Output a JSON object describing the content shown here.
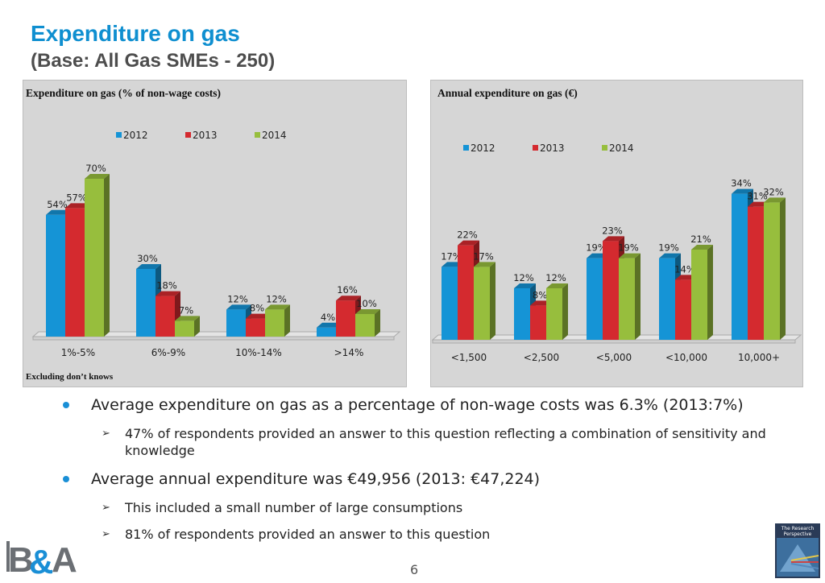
{
  "header": {
    "title": "Expenditure on gas",
    "subtitle": "(Base: All Gas SMEs - 250)"
  },
  "colors": {
    "2012": "#1594d6",
    "2013": "#d42a2f",
    "2014": "#97be3d",
    "panel_bg": "#d6d6d6",
    "title": "#0f8fd0"
  },
  "footnote": "Excluding don’t knows",
  "chart_data": [
    {
      "type": "bar",
      "title": "Expenditure on gas (% of non-wage costs)",
      "categories": [
        "1%-5%",
        "6%-9%",
        "10%-14%",
        ">14%"
      ],
      "series": [
        {
          "name": "2012",
          "values": [
            54,
            30,
            12,
            4
          ]
        },
        {
          "name": "2013",
          "values": [
            57,
            18,
            8,
            16
          ]
        },
        {
          "name": "2014",
          "values": [
            70,
            7,
            12,
            10
          ]
        }
      ],
      "value_suffix": "%",
      "ylim": [
        0,
        75
      ],
      "legend": "top",
      "grid": false
    },
    {
      "type": "bar",
      "title": "Annual expenditure on gas (€)",
      "categories": [
        "<1,500",
        "<2,500",
        "<5,000",
        "<10,000",
        "10,000+"
      ],
      "series": [
        {
          "name": "2012",
          "values": [
            17,
            12,
            19,
            19,
            34
          ]
        },
        {
          "name": "2013",
          "values": [
            22,
            8,
            23,
            14,
            31
          ]
        },
        {
          "name": "2014",
          "values": [
            17,
            12,
            19,
            21,
            32
          ]
        }
      ],
      "value_suffix": "%",
      "ylim": [
        0,
        36
      ],
      "legend": "top",
      "grid": false
    }
  ],
  "bullets": [
    {
      "text": "Average expenditure on gas as a percentage of non-wage costs was 6.3% (2013:7%)",
      "sub": [
        "47% of respondents provided an answer to this question reflecting a combination of sensitivity and knowledge"
      ]
    },
    {
      "text": "Average annual expenditure was €49,956  (2013: €47,224)",
      "sub": [
        "This included a small number of large consumptions",
        "81% of respondents provided an answer to this question"
      ]
    }
  ],
  "page_number": "6",
  "logos": {
    "left": "B&A",
    "right": "The Research Perspective"
  }
}
